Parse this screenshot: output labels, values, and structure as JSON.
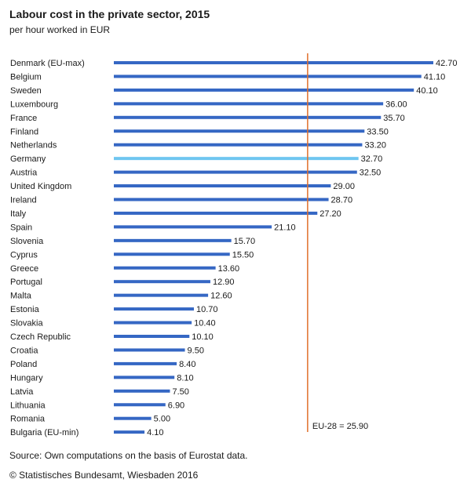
{
  "header": {
    "title": "Labour cost in the private sector, 2015",
    "subtitle": "per hour worked in EUR"
  },
  "footer": {
    "source": "Source: Own computations on the basis of Eurostat data.",
    "copyright": "© Statistisches Bundesamt, Wiesbaden 2016"
  },
  "colors": {
    "bar": "#3567c4",
    "highlight": "#6ec6f0",
    "reference_line": "#e0702a",
    "text": "#1a1a1a"
  },
  "chart_data": {
    "type": "bar",
    "orientation": "horizontal",
    "title": "Labour cost in the private sector, 2015",
    "subtitle": "per hour worked in EUR",
    "categories": [
      "Denmark (EU-max)",
      "Belgium",
      "Sweden",
      "Luxembourg",
      "France",
      "Finland",
      "Netherlands",
      "Germany",
      "Austria",
      "United Kingdom",
      "Ireland",
      "Italy",
      "Spain",
      "Slovenia",
      "Cyprus",
      "Greece",
      "Portugal",
      "Malta",
      "Estonia",
      "Slovakia",
      "Czech Republic",
      "Croatia",
      "Poland",
      "Hungary",
      "Latvia",
      "Lithuania",
      "Romania",
      "Bulgaria (EU-min)"
    ],
    "values": [
      42.7,
      41.1,
      40.1,
      36.0,
      35.7,
      33.5,
      33.2,
      32.7,
      32.5,
      29.0,
      28.7,
      27.2,
      21.1,
      15.7,
      15.5,
      13.6,
      12.9,
      12.6,
      10.7,
      10.4,
      10.1,
      9.5,
      8.4,
      8.1,
      7.5,
      6.9,
      5.0,
      4.1
    ],
    "value_labels": [
      "42.70",
      "41.10",
      "40.10",
      "36.00",
      "35.70",
      "33.50",
      "33.20",
      "32.70",
      "32.50",
      "29.00",
      "28.70",
      "27.20",
      "21.10",
      "15.70",
      "15.50",
      "13.60",
      "12.90",
      "12.60",
      "10.70",
      "10.40",
      "10.10",
      "9.50",
      "8.40",
      "8.10",
      "7.50",
      "6.90",
      "5.00",
      "4.10"
    ],
    "highlight": "Germany",
    "reference": {
      "value": 25.9,
      "label": "EU-28 = 25.90"
    },
    "xlim": [
      0,
      42.7
    ],
    "grid": false,
    "legend": "none"
  }
}
